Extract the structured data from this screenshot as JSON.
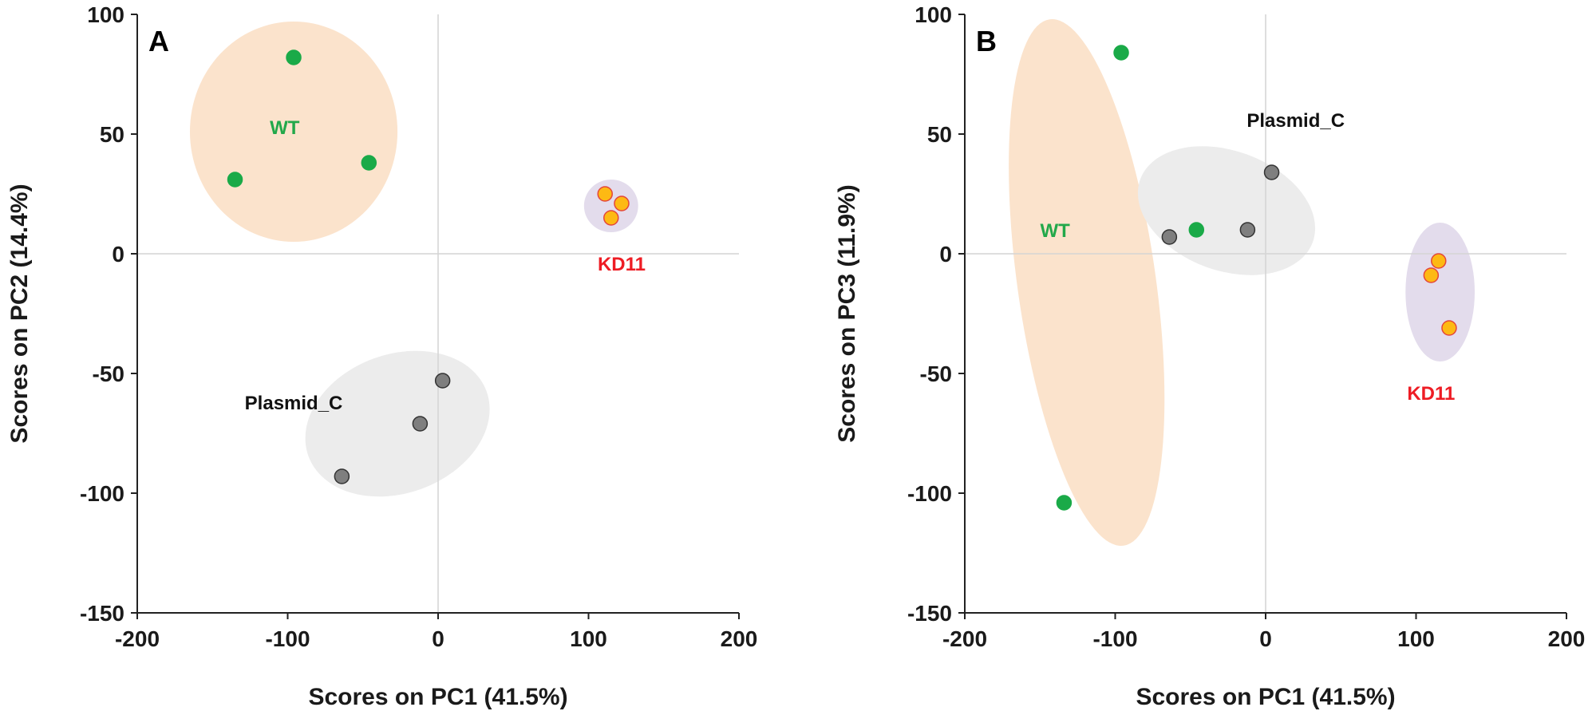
{
  "chart_data": [
    {
      "type": "scatter",
      "panel_label": "A",
      "xlabel": "Scores on PC1 (41.5%)",
      "ylabel": "Scores on PC2 (14.4%)",
      "xlim": [
        -200,
        200
      ],
      "ylim": [
        -150,
        100
      ],
      "xticks": [
        "-200",
        "-100",
        "0",
        "100",
        "200"
      ],
      "yticks": [
        "100",
        "50",
        "0",
        "-50",
        "-100",
        "-150"
      ],
      "grid": false,
      "zero_lines": true,
      "series": [
        {
          "name": "WT",
          "label_color": "#22a84a",
          "marker_fill": "#1aaa48",
          "marker_stroke": "#1aaa48",
          "points": [
            [
              -96,
              82
            ],
            [
              -135,
              31
            ],
            [
              -46,
              38
            ]
          ],
          "ellipse": {
            "cx": -96,
            "cy": 51,
            "rx": 69,
            "ry": 46,
            "angle": 0,
            "fill": "#fbe3cc"
          },
          "label_pos": [
            -102,
            50
          ]
        },
        {
          "name": "KD11",
          "label_color": "#ee1c24",
          "marker_fill": "#fdb913",
          "marker_stroke": "#e4463a",
          "points": [
            [
              111,
              25
            ],
            [
              122,
              21
            ],
            [
              115,
              15
            ]
          ],
          "ellipse": {
            "cx": 115,
            "cy": 20,
            "rx": 18,
            "ry": 11,
            "angle": 0,
            "fill": "#e3dcec"
          },
          "label_pos": [
            122,
            -7
          ]
        },
        {
          "name": "Plasmid_C",
          "label_color": "#111111",
          "marker_fill": "#7f7f7f",
          "marker_stroke": "#333333",
          "points": [
            [
              3,
              -53
            ],
            [
              -12,
              -71
            ],
            [
              -64,
              -93
            ]
          ],
          "ellipse": {
            "cx": -27,
            "cy": -71,
            "rx": 63,
            "ry": 29,
            "angle": 20,
            "fill": "#ececec"
          },
          "label_pos": [
            -96,
            -65
          ]
        }
      ]
    },
    {
      "type": "scatter",
      "panel_label": "B",
      "xlabel": "Scores on PC1 (41.5%)",
      "ylabel": "Scores on PC3 (11.9%)",
      "xlim": [
        -200,
        200
      ],
      "ylim": [
        -150,
        100
      ],
      "xticks": [
        "-200",
        "-100",
        "0",
        "100",
        "200"
      ],
      "yticks": [
        "100",
        "50",
        "0",
        "-50",
        "-100",
        "-150"
      ],
      "grid": false,
      "zero_lines": true,
      "series": [
        {
          "name": "WT",
          "label_color": "#22a84a",
          "marker_fill": "#1aaa48",
          "marker_stroke": "#1aaa48",
          "points": [
            [
              -96,
              84
            ],
            [
              -134,
              -104
            ],
            [
              -46,
              10
            ]
          ],
          "ellipse": {
            "cx": -119,
            "cy": -12,
            "rx": 46,
            "ry": 111,
            "angle": 8,
            "fill": "#fbe3cc"
          },
          "label_pos": [
            -140,
            7
          ]
        },
        {
          "name": "Plasmid_C",
          "label_color": "#111111",
          "marker_fill": "#7f7f7f",
          "marker_stroke": "#333333",
          "points": [
            [
              4,
              34
            ],
            [
              -12,
              10
            ],
            [
              -64,
              7
            ]
          ],
          "ellipse": {
            "cx": -26,
            "cy": 18,
            "rx": 61,
            "ry": 25,
            "angle": -20,
            "fill": "#ececec"
          },
          "label_pos": [
            20,
            53
          ]
        },
        {
          "name": "KD11",
          "label_color": "#ee1c24",
          "marker_fill": "#fdb913",
          "marker_stroke": "#e4463a",
          "points": [
            [
              115,
              -3
            ],
            [
              110,
              -9
            ],
            [
              122,
              -31
            ]
          ],
          "ellipse": {
            "cx": 116,
            "cy": -16,
            "rx": 23,
            "ry": 29,
            "angle": 0,
            "fill": "#e3dcec"
          },
          "label_pos": [
            110,
            -61
          ]
        }
      ]
    }
  ]
}
